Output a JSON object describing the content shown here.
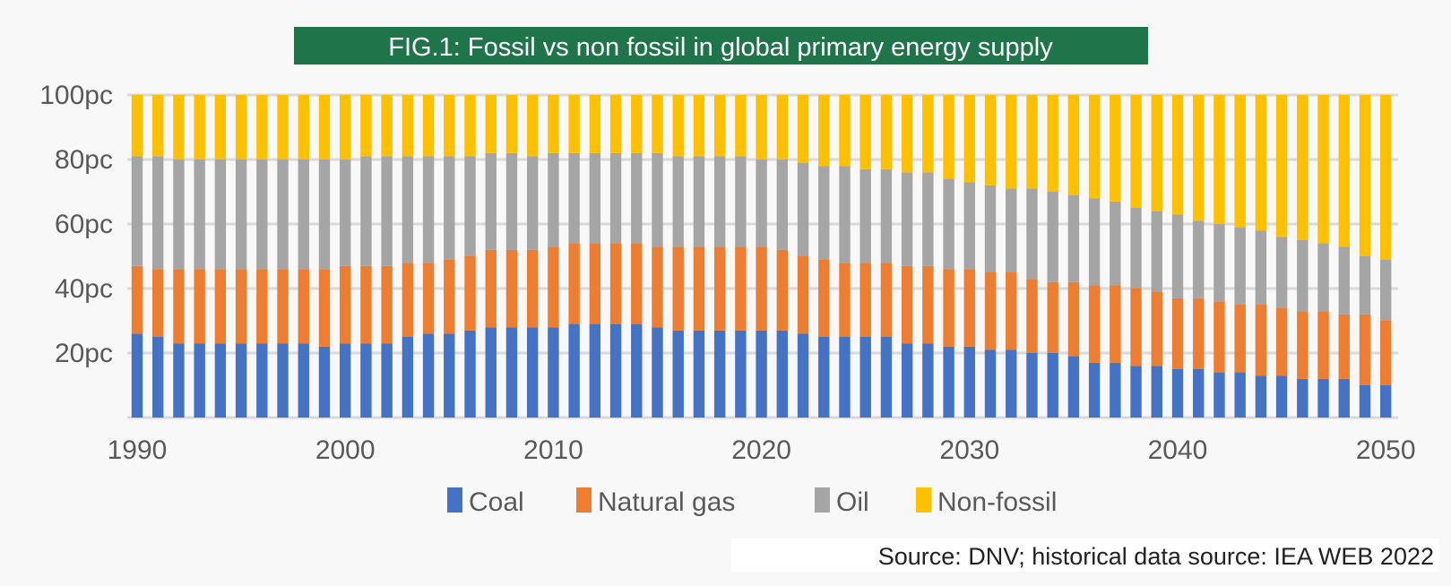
{
  "chart_data": {
    "type": "bar",
    "stacked": true,
    "title": "FIG.1: Fossil vs non fossil in global primary energy supply",
    "source": "Source: DNV; historical data source: IEA WEB 2022",
    "xlabel": "",
    "ylabel": "",
    "ylim": [
      0,
      100
    ],
    "y_ticks": [
      {
        "value": 20,
        "label": "20pc"
      },
      {
        "value": 40,
        "label": "40pc"
      },
      {
        "value": 60,
        "label": "60pc"
      },
      {
        "value": 80,
        "label": "80pc"
      },
      {
        "value": 100,
        "label": "100pc"
      }
    ],
    "x_tick_labels": [
      "1990",
      "2000",
      "2010",
      "2020",
      "2030",
      "2040",
      "2050"
    ],
    "grid": true,
    "legend_position": "bottom",
    "colors": {
      "title_bg": "#1f7549",
      "grid": "#d9d9d9",
      "axis_text": "#595959"
    },
    "categories": [
      1990,
      1991,
      1992,
      1993,
      1994,
      1995,
      1996,
      1997,
      1998,
      1999,
      2000,
      2001,
      2002,
      2003,
      2004,
      2005,
      2006,
      2007,
      2008,
      2009,
      2010,
      2011,
      2012,
      2013,
      2014,
      2015,
      2016,
      2017,
      2018,
      2019,
      2020,
      2021,
      2022,
      2023,
      2024,
      2025,
      2026,
      2027,
      2028,
      2029,
      2030,
      2031,
      2032,
      2033,
      2034,
      2035,
      2036,
      2037,
      2038,
      2039,
      2040,
      2041,
      2042,
      2043,
      2044,
      2045,
      2046,
      2047,
      2048,
      2049,
      2050
    ],
    "series": [
      {
        "name": "Coal",
        "color": "#4472c4",
        "values": [
          26,
          25,
          23,
          23,
          23,
          23,
          23,
          23,
          23,
          22,
          23,
          23,
          23,
          25,
          26,
          26,
          27,
          28,
          28,
          28,
          28,
          29,
          29,
          29,
          29,
          28,
          27,
          27,
          27,
          27,
          27,
          27,
          26,
          25,
          25,
          25,
          25,
          23,
          23,
          22,
          22,
          21,
          21,
          20,
          20,
          19,
          17,
          17,
          16,
          16,
          15,
          15,
          14,
          14,
          13,
          13,
          12,
          12,
          12,
          10,
          10
        ]
      },
      {
        "name": "Natural gas",
        "color": "#ed7d31",
        "values": [
          21,
          21,
          23,
          23,
          23,
          23,
          23,
          23,
          23,
          24,
          24,
          24,
          24,
          23,
          22,
          23,
          23,
          24,
          24,
          24,
          25,
          25,
          25,
          25,
          25,
          25,
          26,
          26,
          26,
          26,
          26,
          25,
          24,
          24,
          23,
          23,
          23,
          24,
          24,
          24,
          24,
          24,
          24,
          23,
          22,
          23,
          24,
          24,
          24,
          23,
          22,
          22,
          22,
          21,
          22,
          21,
          21,
          21,
          20,
          22,
          20
        ]
      },
      {
        "name": "Oil",
        "color": "#a5a5a5",
        "values": [
          34,
          35,
          34,
          34,
          34,
          34,
          34,
          34,
          34,
          34,
          33,
          34,
          34,
          33,
          33,
          32,
          31,
          30,
          30,
          29,
          29,
          28,
          28,
          28,
          28,
          29,
          28,
          28,
          28,
          28,
          27,
          28,
          29,
          29,
          30,
          29,
          29,
          29,
          29,
          28,
          27,
          27,
          26,
          28,
          28,
          27,
          27,
          26,
          25,
          25,
          26,
          24,
          24,
          24,
          23,
          22,
          22,
          21,
          21,
          18,
          19
        ]
      },
      {
        "name": "Non-fossil",
        "color": "#ffc000",
        "values": [
          19,
          19,
          20,
          20,
          20,
          20,
          20,
          20,
          20,
          20,
          20,
          19,
          19,
          19,
          19,
          19,
          19,
          18,
          18,
          19,
          18,
          18,
          18,
          18,
          18,
          18,
          19,
          19,
          19,
          19,
          20,
          20,
          21,
          22,
          22,
          23,
          23,
          24,
          24,
          26,
          27,
          28,
          29,
          29,
          30,
          31,
          32,
          33,
          35,
          36,
          37,
          39,
          40,
          41,
          42,
          44,
          45,
          46,
          47,
          50,
          51
        ]
      }
    ]
  }
}
